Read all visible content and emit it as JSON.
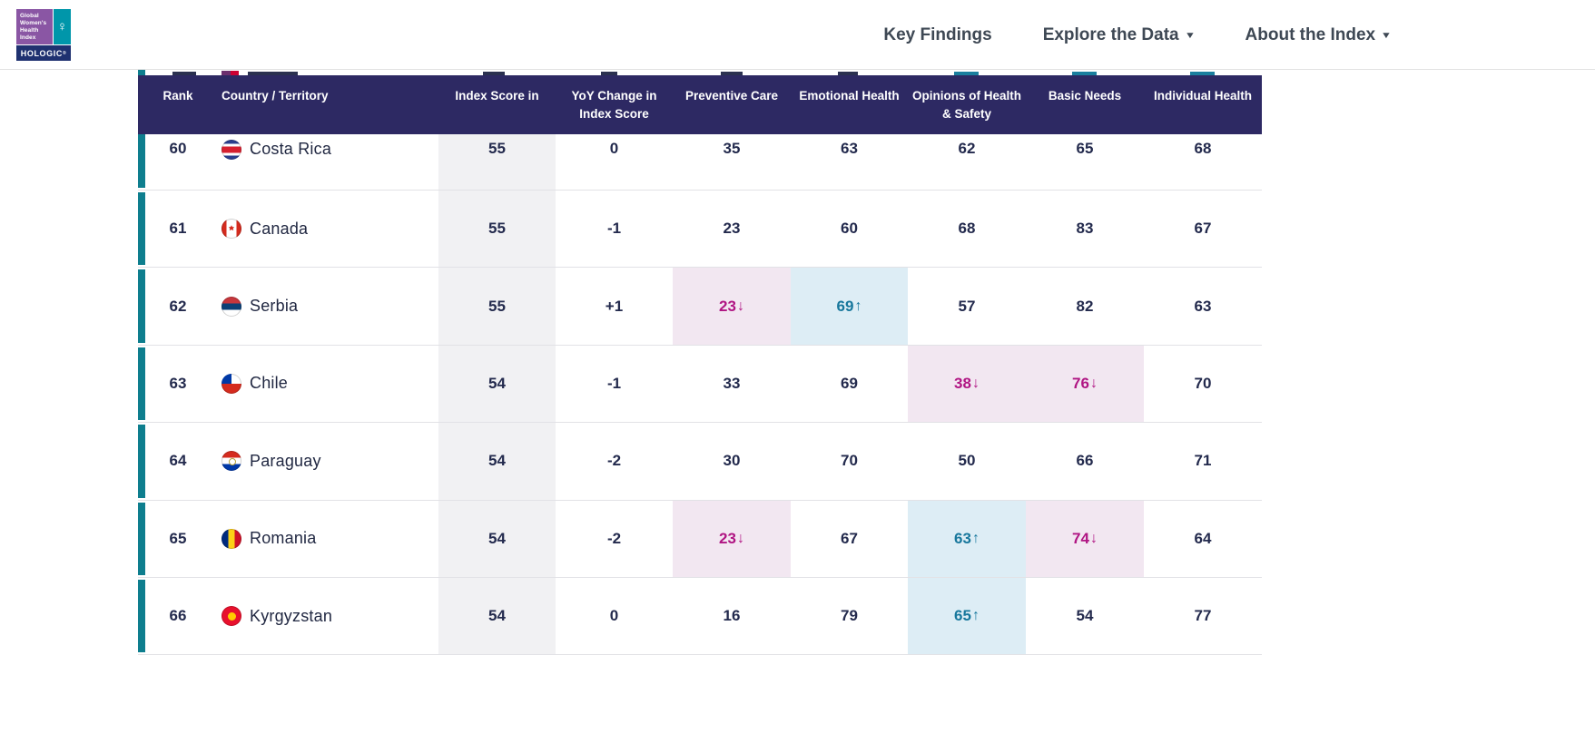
{
  "topbar": {
    "logo": {
      "lines": [
        "Global",
        "Women's",
        "Health",
        "Index"
      ],
      "symbol": "♀",
      "brand": "HOLOGIC",
      "reg_mark": "®"
    },
    "nav": [
      {
        "label": "Key Findings",
        "dropdown": false
      },
      {
        "label": "Explore the Data",
        "dropdown": true
      },
      {
        "label": "About the Index",
        "dropdown": true
      }
    ],
    "dropdown_caret": "▼"
  },
  "colors": {
    "header-bg": "#2d2963",
    "teal-bar": "#0e7e8e",
    "gray-col": "#f1f1f3",
    "pink-bg": "#f2e7f1",
    "pink-text": "#b01583",
    "blue-bg": "#ddedf5",
    "blue-text": "#17779c",
    "text-dark": "#232a4d",
    "nav-text": "#3e4854",
    "logo-purple": "#8a56a4",
    "logo-teal": "#0096aa",
    "logo-navy": "#1f3170"
  },
  "table": {
    "columns": [
      {
        "key": "rank",
        "label": "Rank"
      },
      {
        "key": "country",
        "label": "Country / Territory"
      },
      {
        "key": "index",
        "label": "Index Score in"
      },
      {
        "key": "yoy",
        "label": "YoY Change in Index Score"
      },
      {
        "key": "preventive",
        "label": "Preventive Care"
      },
      {
        "key": "emotional",
        "label": "Emotional Health"
      },
      {
        "key": "opinions",
        "label": "Opinions of Health & Safety"
      },
      {
        "key": "basic",
        "label": "Basic Needs"
      },
      {
        "key": "individual",
        "label": "Individual Health"
      }
    ],
    "arrow_up": "↑",
    "arrow_down": "↓",
    "rows": [
      {
        "rank": "60",
        "country": "Costa Rica",
        "flag": "costa-rica",
        "index": "55",
        "yoy": "0",
        "scores": {
          "preventive": {
            "v": "35"
          },
          "emotional": {
            "v": "63"
          },
          "opinions": {
            "v": "62"
          },
          "basic": {
            "v": "65"
          },
          "individual": {
            "v": "68"
          }
        }
      },
      {
        "rank": "61",
        "country": "Canada",
        "flag": "canada",
        "index": "55",
        "yoy": "-1",
        "scores": {
          "preventive": {
            "v": "23"
          },
          "emotional": {
            "v": "60"
          },
          "opinions": {
            "v": "68"
          },
          "basic": {
            "v": "83"
          },
          "individual": {
            "v": "67"
          }
        }
      },
      {
        "rank": "62",
        "country": "Serbia",
        "flag": "serbia",
        "index": "55",
        "yoy": "+1",
        "scores": {
          "preventive": {
            "v": "23",
            "dir": "down"
          },
          "emotional": {
            "v": "69",
            "dir": "up"
          },
          "opinions": {
            "v": "57"
          },
          "basic": {
            "v": "82"
          },
          "individual": {
            "v": "63"
          }
        }
      },
      {
        "rank": "63",
        "country": "Chile",
        "flag": "chile",
        "index": "54",
        "yoy": "-1",
        "scores": {
          "preventive": {
            "v": "33"
          },
          "emotional": {
            "v": "69"
          },
          "opinions": {
            "v": "38",
            "dir": "down"
          },
          "basic": {
            "v": "76",
            "dir": "down"
          },
          "individual": {
            "v": "70"
          }
        }
      },
      {
        "rank": "64",
        "country": "Paraguay",
        "flag": "paraguay",
        "index": "54",
        "yoy": "-2",
        "scores": {
          "preventive": {
            "v": "30"
          },
          "emotional": {
            "v": "70"
          },
          "opinions": {
            "v": "50"
          },
          "basic": {
            "v": "66"
          },
          "individual": {
            "v": "71"
          }
        }
      },
      {
        "rank": "65",
        "country": "Romania",
        "flag": "romania",
        "index": "54",
        "yoy": "-2",
        "scores": {
          "preventive": {
            "v": "23",
            "dir": "down"
          },
          "emotional": {
            "v": "67"
          },
          "opinions": {
            "v": "63",
            "dir": "up"
          },
          "basic": {
            "v": "74",
            "dir": "down"
          },
          "individual": {
            "v": "64"
          }
        }
      },
      {
        "rank": "66",
        "country": "Kyrgyzstan",
        "flag": "kyrgyzstan",
        "index": "54",
        "yoy": "0",
        "scores": {
          "preventive": {
            "v": "16"
          },
          "emotional": {
            "v": "79"
          },
          "opinions": {
            "v": "65",
            "dir": "up"
          },
          "basic": {
            "v": "54"
          },
          "individual": {
            "v": "77"
          }
        }
      }
    ]
  }
}
